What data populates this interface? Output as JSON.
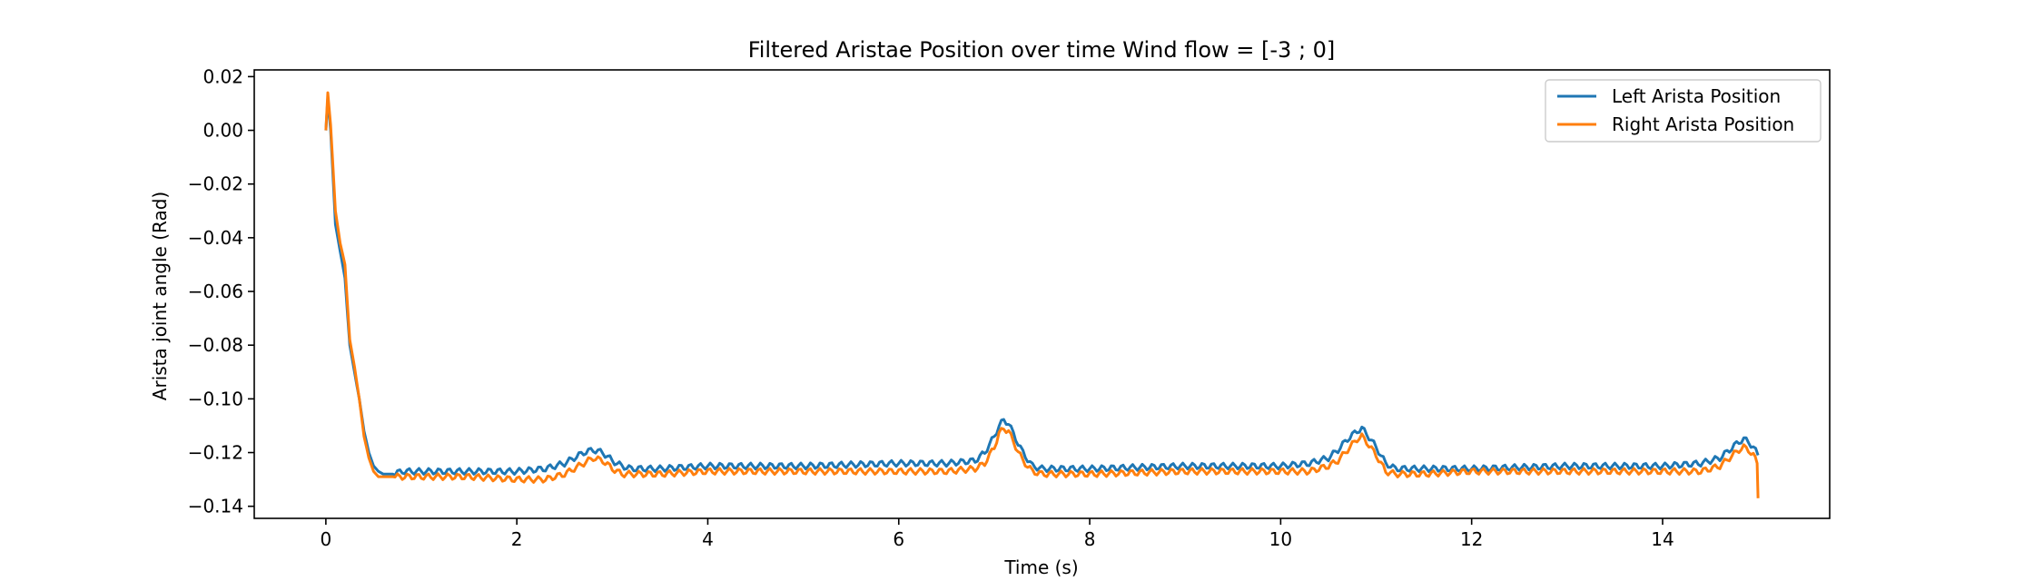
{
  "chart_data": {
    "type": "line",
    "title": "Filtered Aristae Position over time Wind flow = [-3 ; 0]",
    "xlabel": "Time (s)",
    "ylabel": "Arista joint angle (Rad)",
    "xlim": [
      -0.75,
      15.75
    ],
    "ylim": [
      -0.1445,
      0.0225
    ],
    "xticks": [
      0,
      2,
      4,
      6,
      8,
      10,
      12,
      14
    ],
    "xtick_labels": [
      "0",
      "2",
      "4",
      "6",
      "8",
      "10",
      "12",
      "14"
    ],
    "yticks": [
      0.02,
      0.0,
      -0.02,
      -0.04,
      -0.06,
      -0.08,
      -0.1,
      -0.12,
      -0.14
    ],
    "ytick_labels": [
      "0.02",
      "0.00",
      "−0.02",
      "−0.04",
      "−0.06",
      "−0.08",
      "−0.10",
      "−0.12",
      "−0.14"
    ],
    "grid": false,
    "legend_position": "top-right",
    "series": [
      {
        "name": "Left Arista Position",
        "color": "#1f77b4",
        "x": [
          0.0,
          0.02,
          0.05,
          0.1,
          0.15,
          0.2,
          0.25,
          0.3,
          0.35,
          0.4,
          0.45,
          0.5,
          0.55,
          0.6,
          0.7,
          0.8,
          1.0,
          1.5,
          2.0,
          2.3,
          2.5,
          2.6,
          2.7,
          2.8,
          2.9,
          3.0,
          3.1,
          3.2,
          3.5,
          4.0,
          5.0,
          6.0,
          6.5,
          6.8,
          6.9,
          7.0,
          7.05,
          7.1,
          7.15,
          7.2,
          7.3,
          7.4,
          7.5,
          8.0,
          9.0,
          10.0,
          10.3,
          10.5,
          10.6,
          10.7,
          10.8,
          10.85,
          10.9,
          11.0,
          11.1,
          11.2,
          11.5,
          12.0,
          13.0,
          14.0,
          14.4,
          14.6,
          14.7,
          14.8,
          14.85,
          14.9,
          14.95,
          15.0
        ],
        "values": [
          0.0,
          0.012,
          0.0,
          -0.035,
          -0.045,
          -0.055,
          -0.08,
          -0.09,
          -0.1,
          -0.112,
          -0.12,
          -0.125,
          -0.127,
          -0.128,
          -0.128,
          -0.127,
          -0.127,
          -0.127,
          -0.127,
          -0.126,
          -0.124,
          -0.122,
          -0.12,
          -0.119,
          -0.12,
          -0.123,
          -0.125,
          -0.126,
          -0.126,
          -0.125,
          -0.125,
          -0.124,
          -0.124,
          -0.123,
          -0.12,
          -0.114,
          -0.11,
          -0.108,
          -0.109,
          -0.113,
          -0.12,
          -0.125,
          -0.126,
          -0.126,
          -0.125,
          -0.125,
          -0.124,
          -0.122,
          -0.119,
          -0.115,
          -0.112,
          -0.111,
          -0.113,
          -0.118,
          -0.124,
          -0.126,
          -0.126,
          -0.126,
          -0.125,
          -0.125,
          -0.124,
          -0.122,
          -0.119,
          -0.116,
          -0.115,
          -0.116,
          -0.118,
          -0.121
        ]
      },
      {
        "name": "Right Arista Position",
        "color": "#ff7f0e",
        "x": [
          0.0,
          0.02,
          0.05,
          0.1,
          0.15,
          0.2,
          0.25,
          0.3,
          0.35,
          0.4,
          0.45,
          0.5,
          0.55,
          0.6,
          0.7,
          0.8,
          1.0,
          1.5,
          2.0,
          2.3,
          2.5,
          2.6,
          2.7,
          2.8,
          2.9,
          3.0,
          3.1,
          3.2,
          3.5,
          4.0,
          5.0,
          6.0,
          6.5,
          6.8,
          6.9,
          7.0,
          7.05,
          7.1,
          7.15,
          7.2,
          7.3,
          7.4,
          7.5,
          8.0,
          9.0,
          10.0,
          10.3,
          10.5,
          10.6,
          10.7,
          10.8,
          10.85,
          10.9,
          11.0,
          11.1,
          11.2,
          11.5,
          12.0,
          13.0,
          14.0,
          14.4,
          14.6,
          14.7,
          14.8,
          14.85,
          14.9,
          14.95,
          14.99,
          15.0
        ],
        "values": [
          0.0,
          0.014,
          0.002,
          -0.03,
          -0.042,
          -0.05,
          -0.078,
          -0.088,
          -0.1,
          -0.114,
          -0.122,
          -0.127,
          -0.129,
          -0.129,
          -0.129,
          -0.129,
          -0.129,
          -0.129,
          -0.13,
          -0.13,
          -0.128,
          -0.126,
          -0.124,
          -0.122,
          -0.123,
          -0.126,
          -0.128,
          -0.128,
          -0.128,
          -0.127,
          -0.127,
          -0.127,
          -0.127,
          -0.126,
          -0.124,
          -0.118,
          -0.113,
          -0.111,
          -0.112,
          -0.116,
          -0.123,
          -0.127,
          -0.128,
          -0.128,
          -0.127,
          -0.127,
          -0.127,
          -0.125,
          -0.123,
          -0.119,
          -0.115,
          -0.114,
          -0.116,
          -0.121,
          -0.127,
          -0.128,
          -0.128,
          -0.127,
          -0.127,
          -0.127,
          -0.127,
          -0.125,
          -0.122,
          -0.119,
          -0.118,
          -0.119,
          -0.121,
          -0.124,
          -0.137
        ]
      }
    ]
  }
}
